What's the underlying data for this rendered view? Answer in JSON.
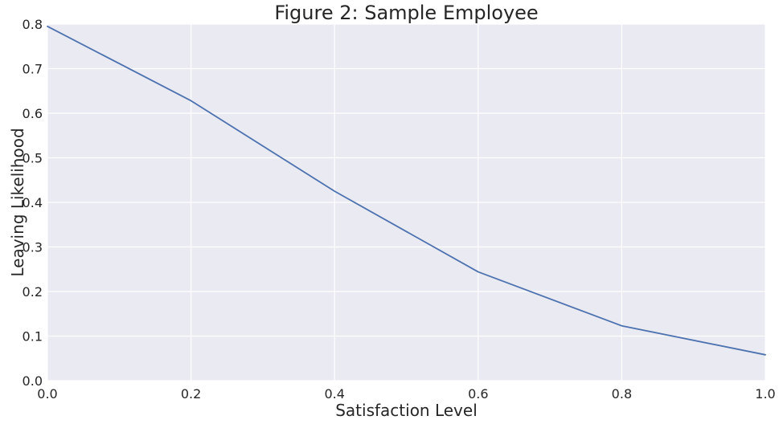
{
  "chart_data": {
    "type": "line",
    "title": "Figure 2: Sample Employee",
    "xlabel": "Satisfaction Level",
    "ylabel": "Leaving Likelihood",
    "xlim": [
      0.0,
      1.0
    ],
    "ylim": [
      0.0,
      0.8
    ],
    "x_ticks": [
      0.0,
      0.2,
      0.4,
      0.6,
      0.8,
      1.0
    ],
    "x_tick_labels": [
      "0.0",
      "0.2",
      "0.4",
      "0.6",
      "0.8",
      "1.0"
    ],
    "y_ticks": [
      0.0,
      0.1,
      0.2,
      0.3,
      0.4,
      0.5,
      0.6,
      0.7,
      0.8
    ],
    "y_tick_labels": [
      "0.0",
      "0.1",
      "0.2",
      "0.3",
      "0.4",
      "0.5",
      "0.6",
      "0.7",
      "0.8"
    ],
    "grid": true,
    "background_color": "#eaeaf2",
    "series": [
      {
        "color": "#4c72b0",
        "x": [
          0.0,
          0.2,
          0.4,
          0.6,
          0.8,
          1.0
        ],
        "y": [
          0.795,
          0.628,
          0.425,
          0.244,
          0.123,
          0.058
        ]
      }
    ]
  }
}
